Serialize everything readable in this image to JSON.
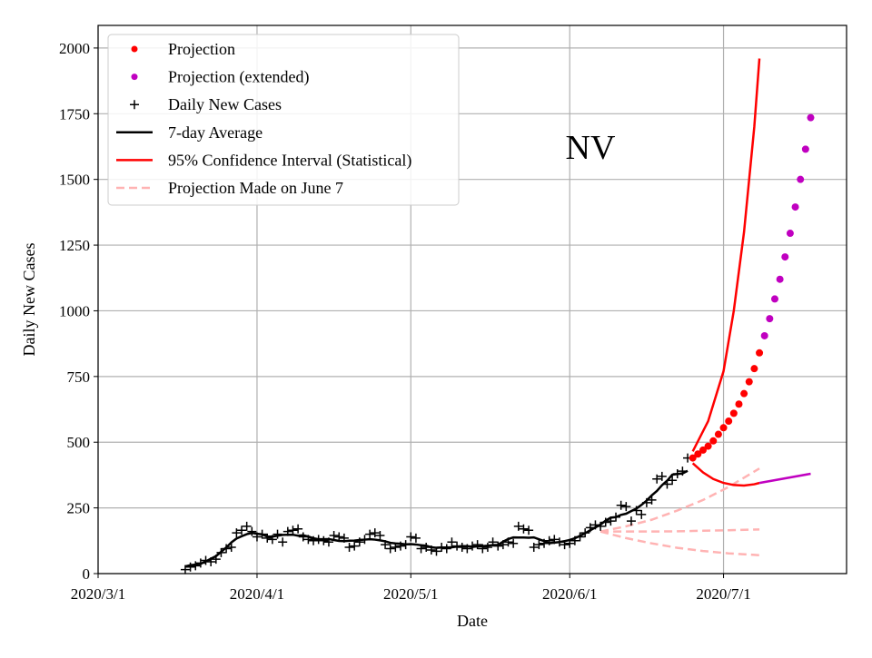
{
  "chart_data": {
    "type": "line",
    "title": "NV",
    "xlabel": "Date",
    "ylabel": "Daily New Cases",
    "xlim_days_since_2020_03_01": [
      0,
      146
    ],
    "ylim": [
      0,
      2086
    ],
    "grid": true,
    "legend_placement": "top-left",
    "x_ticks": [
      {
        "day": 0,
        "label": "2020/3/1"
      },
      {
        "day": 31,
        "label": "2020/4/1"
      },
      {
        "day": 61,
        "label": "2020/5/1"
      },
      {
        "day": 92,
        "label": "2020/6/1"
      },
      {
        "day": 122,
        "label": "2020/7/1"
      }
    ],
    "y_ticks": [
      0,
      250,
      500,
      750,
      1000,
      1250,
      1500,
      1750,
      2000
    ],
    "legend": [
      "Projection",
      "Projection (extended)",
      "Daily New Cases",
      "7-day Average",
      "95% Confidence Interval (Statistical)",
      "Projection Made on June 7"
    ],
    "colors": {
      "projection": "#ff0000",
      "extended": "#c000c0",
      "daily": "#000000",
      "ci": "#ff0000",
      "june7": "#ffb3b3",
      "grid": "#b0b0b0"
    },
    "daily_new_cases": {
      "start_day": 17,
      "values": [
        15,
        25,
        30,
        40,
        50,
        45,
        55,
        80,
        95,
        100,
        155,
        165,
        180,
        160,
        140,
        150,
        135,
        130,
        150,
        120,
        160,
        165,
        170,
        140,
        130,
        125,
        130,
        125,
        120,
        145,
        140,
        135,
        100,
        105,
        120,
        130,
        150,
        155,
        145,
        110,
        95,
        100,
        105,
        110,
        140,
        135,
        95,
        100,
        90,
        85,
        100,
        95,
        120,
        105,
        100,
        95,
        105,
        110,
        95,
        100,
        120,
        105,
        110,
        120,
        115,
        180,
        170,
        165,
        100,
        110,
        115,
        125,
        130,
        120,
        110,
        115,
        125,
        140,
        155,
        175,
        185,
        180,
        195,
        200,
        215,
        260,
        255,
        200,
        240,
        225,
        270,
        280,
        360,
        370,
        340,
        355,
        380,
        390,
        440
      ]
    },
    "projection": {
      "start_day": 116,
      "values": [
        440,
        455,
        470,
        485,
        505,
        530,
        555,
        580,
        610,
        645,
        685,
        730,
        780,
        840
      ]
    },
    "projection_extended": {
      "start_day": 130,
      "values": [
        905,
        970,
        1045,
        1120,
        1205,
        1295,
        1395,
        1500,
        1615,
        1735
      ]
    },
    "ci_upper": {
      "days": [
        116,
        119,
        122,
        124,
        126,
        128,
        129
      ],
      "values": [
        465,
        580,
        770,
        1000,
        1300,
        1700,
        1960
      ]
    },
    "ci_lower": {
      "days": [
        116,
        118,
        120,
        122,
        124,
        126,
        128,
        129
      ],
      "values": [
        420,
        385,
        360,
        345,
        337,
        335,
        340,
        345
      ]
    },
    "ci_lower_extended": {
      "days": [
        129,
        139
      ],
      "values": [
        345,
        380
      ]
    },
    "june7_projection": {
      "days": [
        98,
        103,
        108,
        113,
        118,
        123,
        129
      ],
      "upper": [
        160,
        180,
        205,
        240,
        280,
        330,
        400
      ],
      "middle": [
        160,
        160,
        160,
        161,
        163,
        165,
        168
      ],
      "lower": [
        160,
        135,
        115,
        98,
        86,
        77,
        70
      ]
    }
  }
}
